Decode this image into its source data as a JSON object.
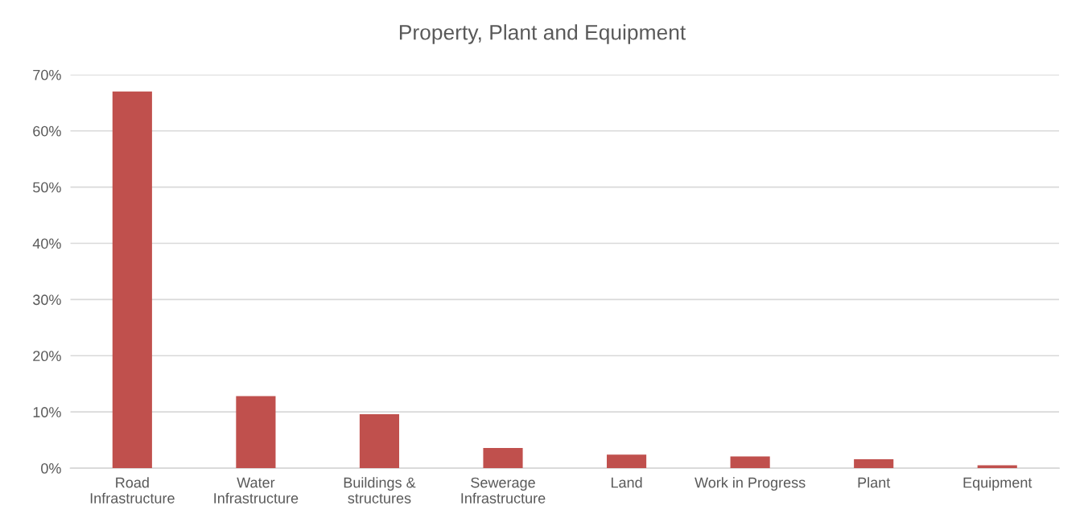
{
  "chart_data": {
    "type": "bar",
    "title": "Property, Plant and Equipment",
    "categories": [
      "Road\nInfrastructure",
      "Water\nInfrastructure",
      "Buildings &\nstructures",
      "Sewerage\nInfrastructure",
      "Land",
      "Work in Progress",
      "Plant",
      "Equipment"
    ],
    "values": [
      0.67,
      0.128,
      0.096,
      0.036,
      0.024,
      0.021,
      0.016,
      0.005
    ],
    "color": "#c0504d",
    "ylim": [
      0,
      0.7
    ],
    "yticks": [
      {
        "value": 0,
        "label": "0%"
      },
      {
        "value": 0.1,
        "label": "10%"
      },
      {
        "value": 0.2,
        "label": "20%"
      },
      {
        "value": 0.3,
        "label": "30%"
      },
      {
        "value": 0.4,
        "label": "40%"
      },
      {
        "value": 0.5,
        "label": "50%"
      },
      {
        "value": 0.6,
        "label": "60%"
      },
      {
        "value": 0.7,
        "label": "70%"
      }
    ],
    "grid": "y",
    "legend": false
  }
}
